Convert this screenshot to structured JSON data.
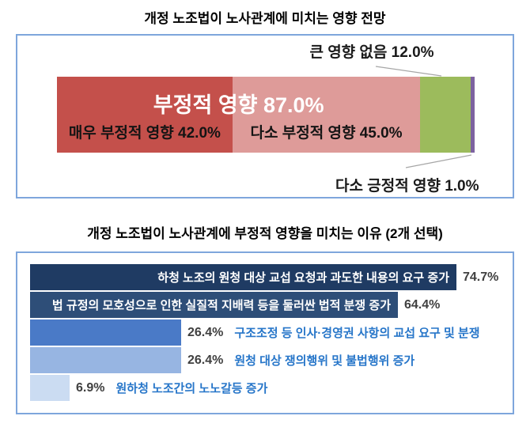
{
  "page": {
    "chart1_title": "개정 노조법이 노사관계에 미치는 영향 전망",
    "chart2_title": "개정 노조법이 노사관계에 부정적 영향을 미치는 이유 (2개 선택)"
  },
  "colors": {
    "panel_border": "#7EA6DC",
    "very_negative": "#C4504B",
    "somewhat_negative": "#DE9B99",
    "no_impact": "#9CBB5C",
    "somewhat_positive": "#7D62A0",
    "reason_bar_1": "#1F3B63",
    "reason_bar_2": "#2E4E78",
    "reason_bar_3": "#4A7AC7",
    "reason_bar_4": "#97B5E2",
    "reason_bar_5": "#CBDCF2",
    "value_text": "#404040",
    "outside_label_text": "#2776C9",
    "leader_line": "#A6A6A6"
  },
  "chart_data": [
    {
      "type": "bar",
      "subtype": "stacked-horizontal",
      "title": "개정 노조법이 노사관계에 미치는 영향 전망",
      "unit": "%",
      "xlim": [
        0,
        100
      ],
      "segments": [
        {
          "label": "매우 부정적 영향",
          "value": 42.0,
          "value_label": "매우 부정적 영향 42.0%",
          "color": "#C4504B",
          "label_position": "inside"
        },
        {
          "label": "다소 부정적 영향",
          "value": 45.0,
          "value_label": "다소 부정적 영향 45.0%",
          "color": "#DE9B99",
          "label_position": "inside"
        },
        {
          "label": "큰 영향 없음",
          "value": 12.0,
          "value_label": "큰 영향 없음 12.0%",
          "color": "#9CBB5C",
          "label_position": "callout-top"
        },
        {
          "label": "다소 긍정적 영향",
          "value": 1.0,
          "value_label": "다소 긍정적 영향 1.0%",
          "color": "#7D62A0",
          "label_position": "callout-bottom"
        }
      ],
      "group_label": {
        "text": "부정적 영향 87.0%",
        "value": 87.0
      }
    },
    {
      "type": "bar",
      "subtype": "horizontal",
      "title": "개정 노조법이 노사관계에 부정적 영향을 미치는 이유 (2개 선택)",
      "unit": "%",
      "max_value": 74.7,
      "bars": [
        {
          "label": "하청 노조의 원청 대상 교섭 요청과 과도한 내용의 요구 증가",
          "value": 74.7,
          "value_label": "74.7%",
          "color": "#1F3B63",
          "label_position": "inside"
        },
        {
          "label": "법 규정의 모호성으로 인한 실질적 지배력 등을 둘러싼 법적 분쟁 증가",
          "value": 64.4,
          "value_label": "64.4%",
          "color": "#2E4E78",
          "label_position": "inside"
        },
        {
          "label": "구조조정 등 인사·경영권 사항의 교섭 요구 및 분쟁",
          "value": 26.4,
          "value_label": "26.4%",
          "color": "#4A7AC7",
          "label_position": "outside"
        },
        {
          "label": "원청 대상 쟁의행위 및 불법행위 증가",
          "value": 26.4,
          "value_label": "26.4%",
          "color": "#97B5E2",
          "label_position": "outside"
        },
        {
          "label": "원하청 노조간의 노노갈등 증가",
          "value": 6.9,
          "value_label": "6.9%",
          "color": "#CBDCF2",
          "label_position": "outside"
        }
      ]
    }
  ]
}
